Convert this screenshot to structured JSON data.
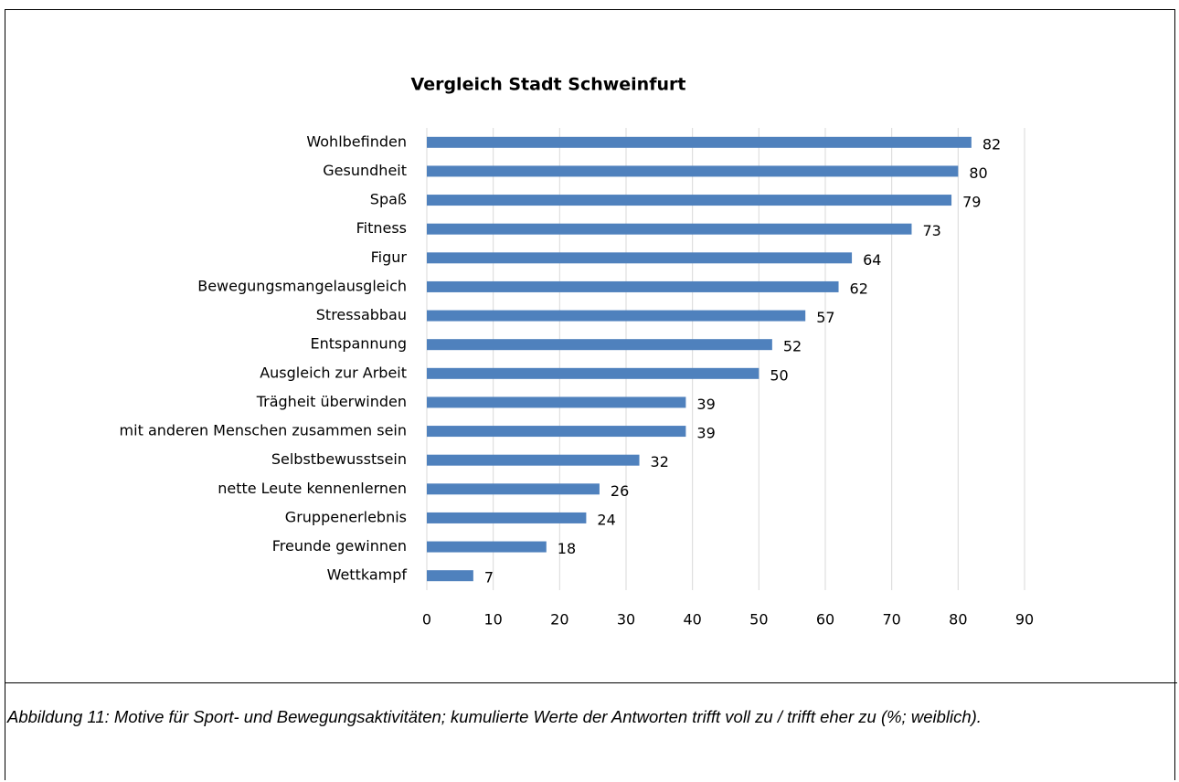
{
  "chart_data": {
    "type": "bar",
    "orientation": "horizontal",
    "title": "Vergleich Stadt Schweinfurt",
    "categories": [
      "Wohlbefinden",
      "Gesundheit",
      "Spaß",
      "Fitness",
      "Figur",
      "Bewegungsmangelausgleich",
      "Stressabbau",
      "Entspannung",
      "Ausgleich zur Arbeit",
      "Trägheit überwinden",
      "mit anderen Menschen zusammen sein",
      "Selbstbewusstsein",
      "nette Leute kennenlernen",
      "Gruppenerlebnis",
      "Freunde gewinnen",
      "Wettkampf"
    ],
    "values": [
      82,
      80,
      79,
      73,
      64,
      62,
      57,
      52,
      50,
      39,
      39,
      32,
      26,
      24,
      18,
      7
    ],
    "color": "#4f81bd",
    "xlim": [
      0,
      90
    ],
    "xticks": [
      0,
      10,
      20,
      30,
      40,
      50,
      60,
      70,
      80,
      90
    ],
    "grid": true
  },
  "caption": "Abbildung 11: Motive für Sport- und Bewegungsaktivitäten; kumulierte Werte der Antworten trifft voll zu / trifft eher zu (%; weiblich)."
}
